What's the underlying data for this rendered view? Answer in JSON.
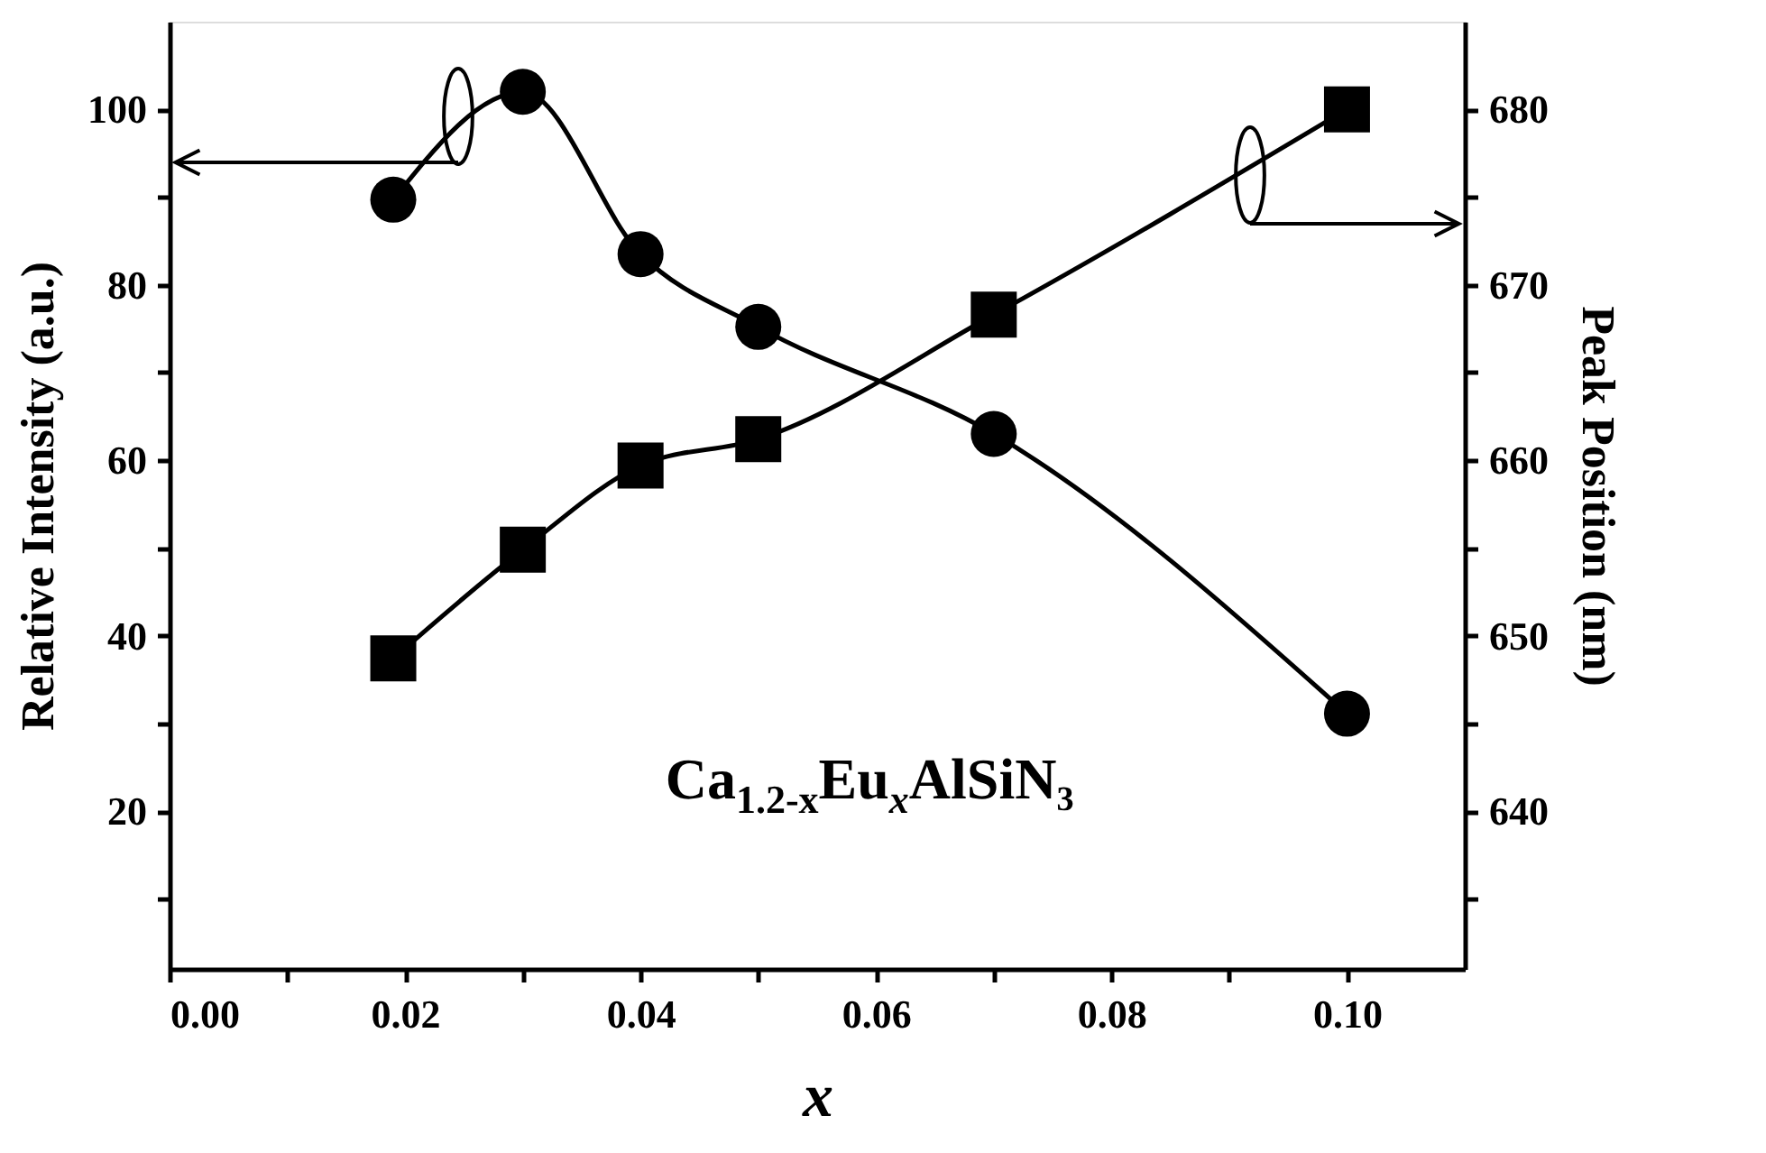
{
  "chart_data": {
    "type": "line",
    "xlabel": "x",
    "ylabel": "Relative Intensity (a.u.)",
    "y2label": "Peak Position (nm)",
    "x": [
      0.019,
      0.03,
      0.04,
      0.05,
      0.07,
      0.1
    ],
    "series": [
      {
        "color": "#000000",
        "marker": "circle",
        "values": [
          89.7,
          102,
          83.5,
          75.2,
          63,
          31.1
        ]
      },
      {
        "color": "#000000",
        "marker": "square",
        "axis": "y2",
        "values": [
          648.7,
          654.9,
          659.7,
          661.2,
          668.3,
          680
        ]
      }
    ],
    "xlim": [
      0,
      0.11
    ],
    "xticks": [
      {
        "value": 0,
        "label": "0.00"
      },
      {
        "value": 0.01,
        "label": null
      },
      0.02,
      {
        "value": 0.03,
        "label": null
      },
      0.04,
      {
        "value": 0.05,
        "label": null
      },
      0.06,
      {
        "value": 0.07,
        "label": null
      },
      0.08,
      {
        "value": 0.09,
        "label": null
      },
      {
        "value": 0.1,
        "label": "0.10"
      }
    ],
    "ylim": [
      2,
      110
    ],
    "yticks": [
      {
        "value": 10,
        "label": null
      },
      20,
      {
        "value": 30,
        "label": null
      },
      40,
      {
        "value": 50,
        "label": null
      },
      60,
      {
        "value": 70,
        "label": null
      },
      80,
      {
        "value": 90,
        "label": null
      },
      100
    ],
    "y2lim": [
      631,
      685
    ],
    "y2ticks": [
      {
        "value": 635,
        "label": null
      },
      640,
      {
        "value": 645,
        "label": null
      },
      650,
      {
        "value": 655,
        "label": null
      },
      660,
      {
        "value": 665,
        "label": null
      },
      670,
      {
        "value": 675,
        "label": null
      },
      680
    ],
    "annotations": [
      "Ca$_{1.2-x}$Eu$_{x}$AlSiN₃"
    ],
    "grid": false,
    "line_style": "solid"
  }
}
